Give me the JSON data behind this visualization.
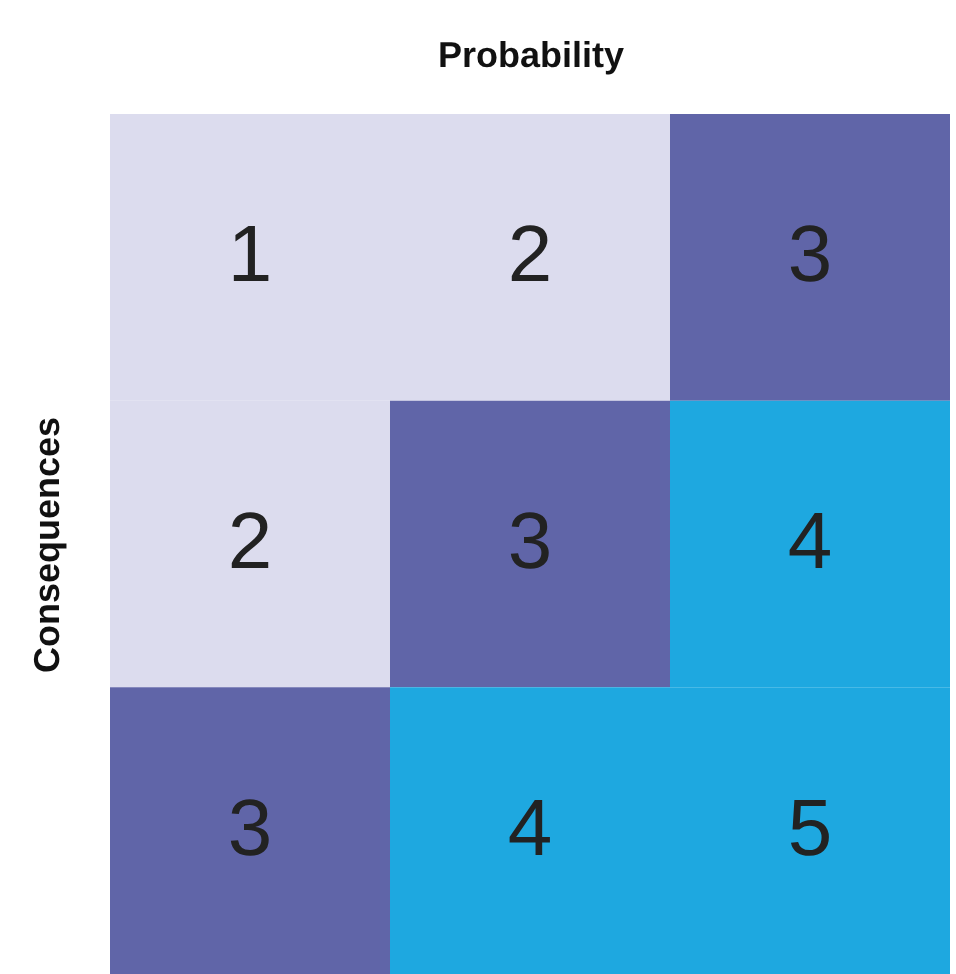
{
  "chart_data": {
    "type": "heatmap",
    "xlabel": "Probability",
    "ylabel": "Consequences",
    "categories": [
      null,
      null,
      null
    ],
    "y_categories": [
      null,
      null,
      null
    ],
    "cells": [
      [
        1,
        2,
        3
      ],
      [
        2,
        3,
        4
      ],
      [
        3,
        4,
        5
      ]
    ],
    "colors": [
      "#dcdcee",
      "#dcdcee",
      "#6065a8",
      "#dcdcee",
      "#6065a8",
      "#1ea8e0",
      "#6065a8",
      "#1ea8e0",
      "#1ea8e0"
    ],
    "data_labels": true,
    "tick_labels": false
  }
}
